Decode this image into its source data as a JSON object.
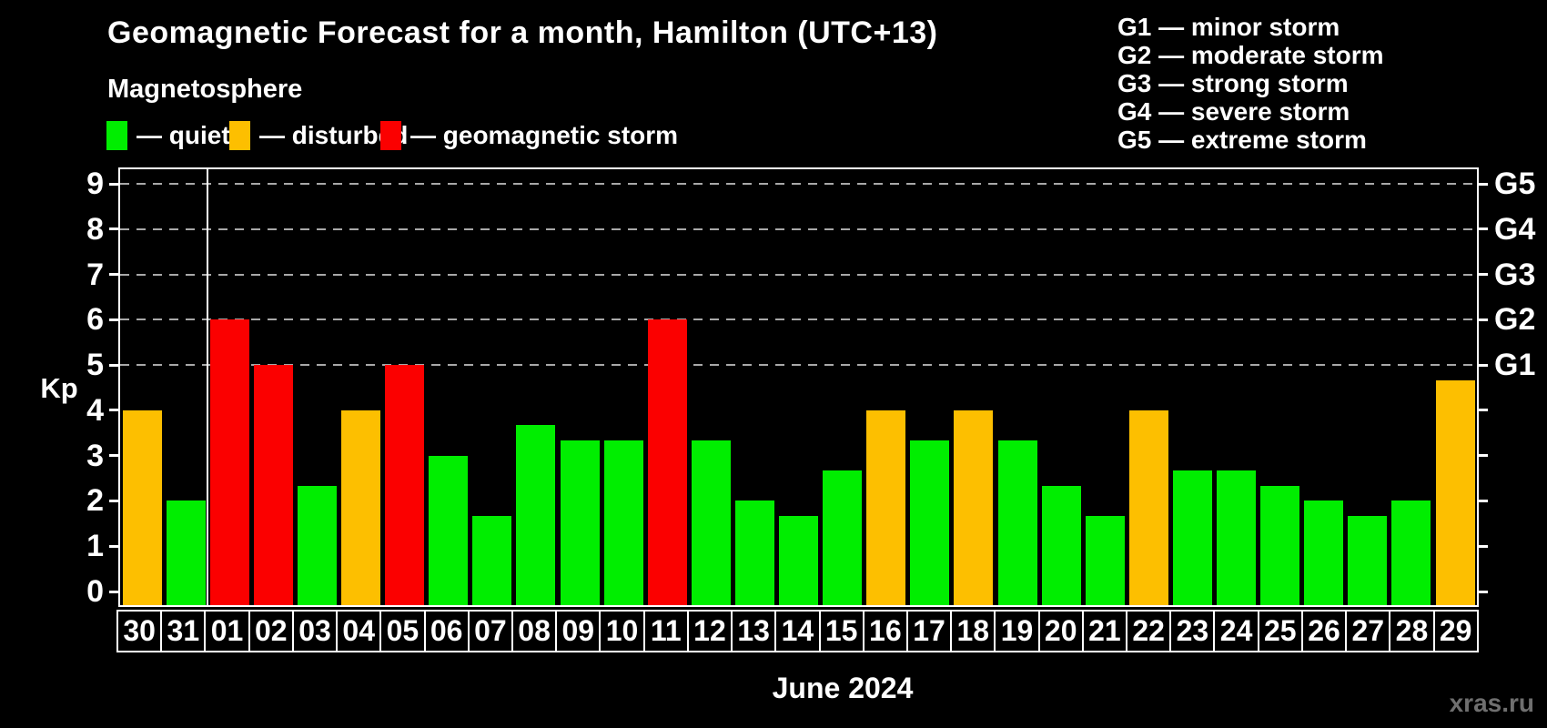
{
  "header": {
    "title": "Geomagnetic Forecast for a month, Hamilton (UTC+13)",
    "subtitle": "Magnetosphere"
  },
  "legend": {
    "items": [
      {
        "status": "quiet",
        "color": "#00ee00",
        "label": "— quiet"
      },
      {
        "status": "disturbed",
        "color": "#fdbf00",
        "label": "— disturbed"
      },
      {
        "status": "storm",
        "color": "#fb0000",
        "label": "— geomagnetic storm"
      }
    ]
  },
  "storm_scale": {
    "items": [
      {
        "label": "G1 — minor storm"
      },
      {
        "label": "G2 — moderate storm"
      },
      {
        "label": "G3 — strong storm"
      },
      {
        "label": "G4 — severe storm"
      },
      {
        "label": "G5 — extreme storm"
      }
    ]
  },
  "chart_data": {
    "type": "bar",
    "title": "Geomagnetic Forecast for a month, Hamilton (UTC+13)",
    "xlabel": "June 2024",
    "ylabel": "Kp",
    "ylim": [
      0,
      9
    ],
    "yticks": [
      0,
      1,
      2,
      3,
      4,
      5,
      6,
      7,
      8,
      9
    ],
    "grid_levels": [
      5,
      6,
      7,
      8,
      9
    ],
    "right_axis": [
      {
        "kp": 9,
        "label": "G5"
      },
      {
        "kp": 8,
        "label": "G4"
      },
      {
        "kp": 7,
        "label": "G3"
      },
      {
        "kp": 6,
        "label": "G2"
      },
      {
        "kp": 5,
        "label": "G1"
      }
    ],
    "month_separator_after": "31",
    "status_colors": {
      "quiet": "#00ee00",
      "disturbed": "#fdbf00",
      "storm": "#fb0000"
    },
    "bars": [
      {
        "date": "30",
        "kp": 4.0,
        "status": "disturbed"
      },
      {
        "date": "31",
        "kp": 2.0,
        "status": "quiet"
      },
      {
        "date": "01",
        "kp": 6.0,
        "status": "storm"
      },
      {
        "date": "02",
        "kp": 5.0,
        "status": "storm"
      },
      {
        "date": "03",
        "kp": 2.33,
        "status": "quiet"
      },
      {
        "date": "04",
        "kp": 4.0,
        "status": "disturbed"
      },
      {
        "date": "05",
        "kp": 5.0,
        "status": "storm"
      },
      {
        "date": "06",
        "kp": 3.0,
        "status": "quiet"
      },
      {
        "date": "07",
        "kp": 1.67,
        "status": "quiet"
      },
      {
        "date": "08",
        "kp": 3.67,
        "status": "quiet"
      },
      {
        "date": "09",
        "kp": 3.33,
        "status": "quiet"
      },
      {
        "date": "10",
        "kp": 3.33,
        "status": "quiet"
      },
      {
        "date": "11",
        "kp": 6.0,
        "status": "storm"
      },
      {
        "date": "12",
        "kp": 3.33,
        "status": "quiet"
      },
      {
        "date": "13",
        "kp": 2.0,
        "status": "quiet"
      },
      {
        "date": "14",
        "kp": 1.67,
        "status": "quiet"
      },
      {
        "date": "15",
        "kp": 2.67,
        "status": "quiet"
      },
      {
        "date": "16",
        "kp": 4.0,
        "status": "disturbed"
      },
      {
        "date": "17",
        "kp": 3.33,
        "status": "quiet"
      },
      {
        "date": "18",
        "kp": 4.0,
        "status": "disturbed"
      },
      {
        "date": "19",
        "kp": 3.33,
        "status": "quiet"
      },
      {
        "date": "20",
        "kp": 2.33,
        "status": "quiet"
      },
      {
        "date": "21",
        "kp": 1.67,
        "status": "quiet"
      },
      {
        "date": "22",
        "kp": 4.0,
        "status": "disturbed"
      },
      {
        "date": "23",
        "kp": 2.67,
        "status": "quiet"
      },
      {
        "date": "24",
        "kp": 2.67,
        "status": "quiet"
      },
      {
        "date": "25",
        "kp": 2.33,
        "status": "quiet"
      },
      {
        "date": "26",
        "kp": 2.0,
        "status": "quiet"
      },
      {
        "date": "27",
        "kp": 1.67,
        "status": "quiet"
      },
      {
        "date": "28",
        "kp": 2.0,
        "status": "quiet"
      },
      {
        "date": "29",
        "kp": 4.67,
        "status": "disturbed"
      }
    ]
  },
  "footer": {
    "watermark": "xras.ru"
  }
}
